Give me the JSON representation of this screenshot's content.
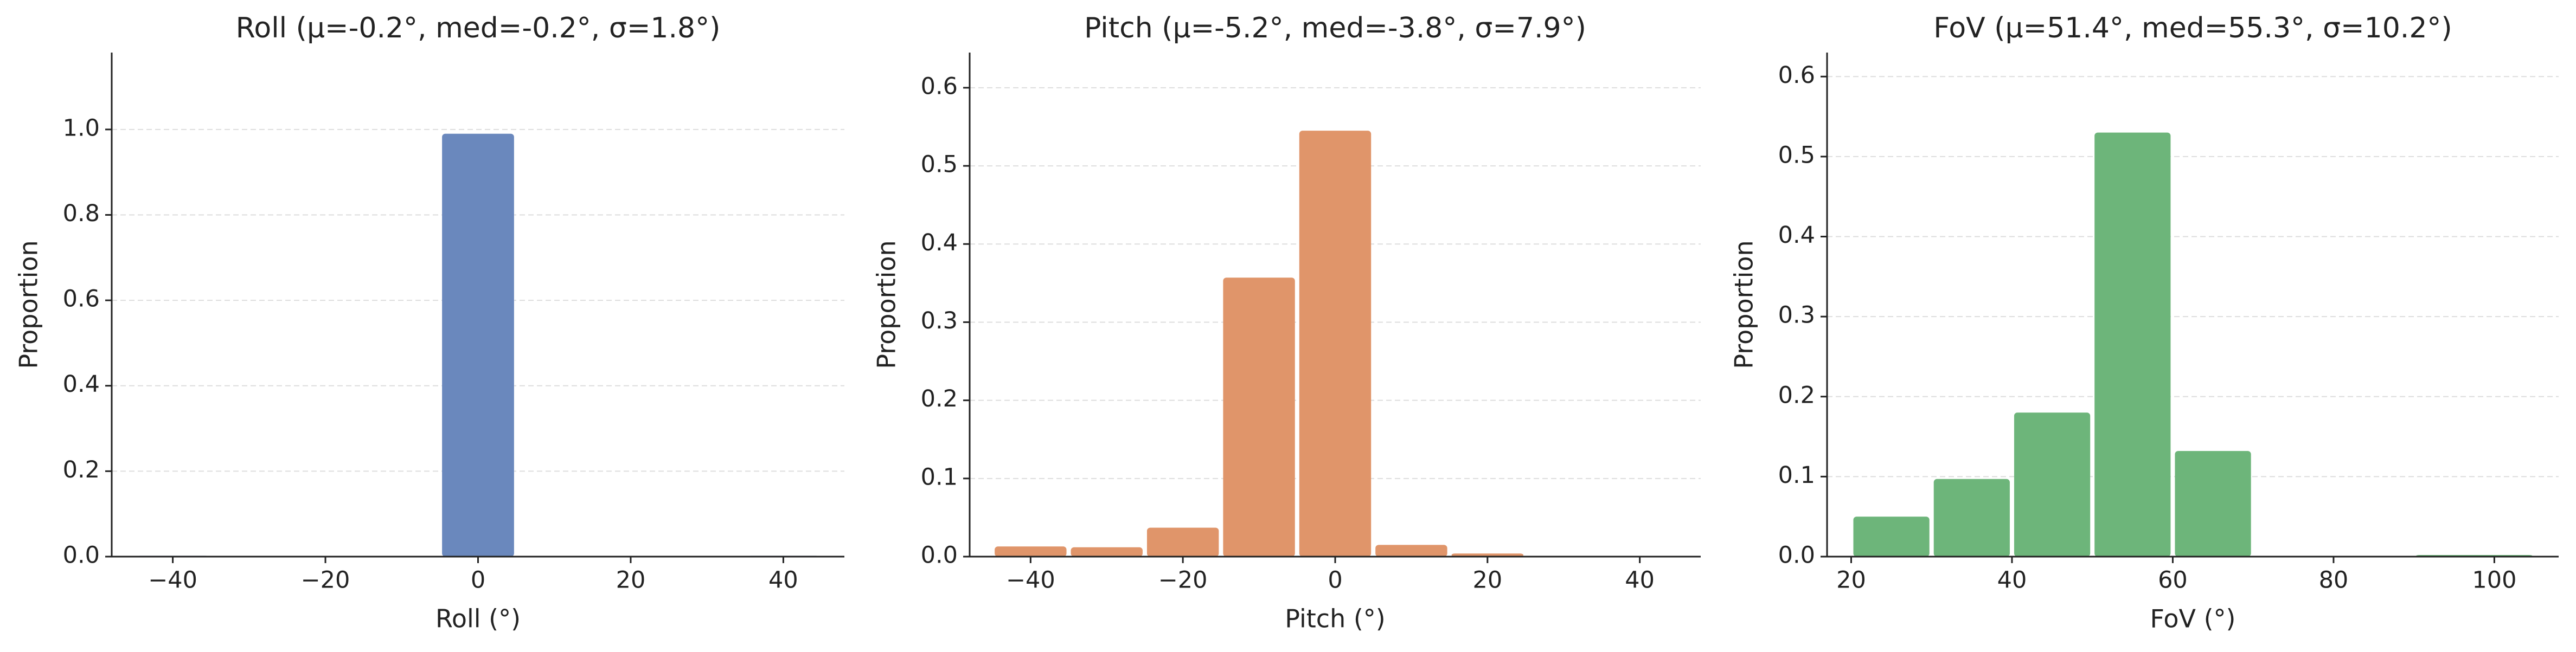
{
  "chart_data": [
    {
      "type": "histogram",
      "title": "Roll  (μ=-0.2°, med=-0.2°, σ=1.8°)",
      "xlabel": "Roll (°)",
      "ylabel": "Proportion",
      "bins": [
        -45,
        -35,
        -25,
        -15,
        -5,
        5,
        15,
        25,
        35,
        45
      ],
      "values": [
        0.002,
        0.001,
        0.001,
        0,
        0.99,
        0,
        0.001,
        0,
        0.002
      ],
      "color": "#6a88bd",
      "xlim": [
        -48,
        48
      ],
      "ylim": [
        0,
        1.18
      ],
      "xticks": [
        {
          "value": -40,
          "label": "−40"
        },
        {
          "value": -20,
          "label": "−20"
        },
        0,
        20,
        40
      ],
      "yticks": [
        {
          "value": 0,
          "label": "0.0"
        },
        0.2,
        0.4,
        0.6,
        0.8,
        {
          "value": 1,
          "label": "1.0"
        }
      ],
      "grid": true
    },
    {
      "type": "histogram",
      "title": "Pitch  (μ=-5.2°, med=-3.8°, σ=7.9°)",
      "xlabel": "Pitch (°)",
      "ylabel": "Proportion",
      "bins": [
        -45,
        -35,
        -25,
        -15,
        -5,
        5,
        15,
        25,
        35,
        45
      ],
      "values": [
        0.013,
        0.012,
        0.037,
        0.357,
        0.545,
        0.015,
        0.004,
        0.001,
        0.001
      ],
      "color": "#e0956a",
      "xlim": [
        -48,
        48
      ],
      "ylim": [
        0,
        0.645
      ],
      "xticks": [
        {
          "value": -40,
          "label": "−40"
        },
        {
          "value": -20,
          "label": "−20"
        },
        0,
        20,
        40
      ],
      "yticks": [
        {
          "value": 0,
          "label": "0.0"
        },
        0.1,
        0.2,
        0.3,
        0.4,
        0.5,
        0.6
      ],
      "grid": true
    },
    {
      "type": "histogram",
      "title": "FoV  (μ=51.4°, med=55.3°, σ=10.2°)",
      "xlabel": "FoV (°)",
      "ylabel": "Proportion",
      "bins": [
        20,
        30,
        40,
        50,
        60,
        70,
        80,
        90,
        105
      ],
      "values": [
        0.05,
        0.097,
        0.18,
        0.53,
        0.132,
        0.001,
        0.001,
        0.002
      ],
      "color": "#6db57a",
      "xlim": [
        17,
        108
      ],
      "ylim": [
        0,
        0.63
      ],
      "xticks": [
        20,
        40,
        60,
        80,
        100
      ],
      "yticks": [
        {
          "value": 0,
          "label": "0.0"
        },
        0.1,
        0.2,
        0.3,
        0.4,
        0.5,
        0.6
      ],
      "grid": true
    }
  ]
}
